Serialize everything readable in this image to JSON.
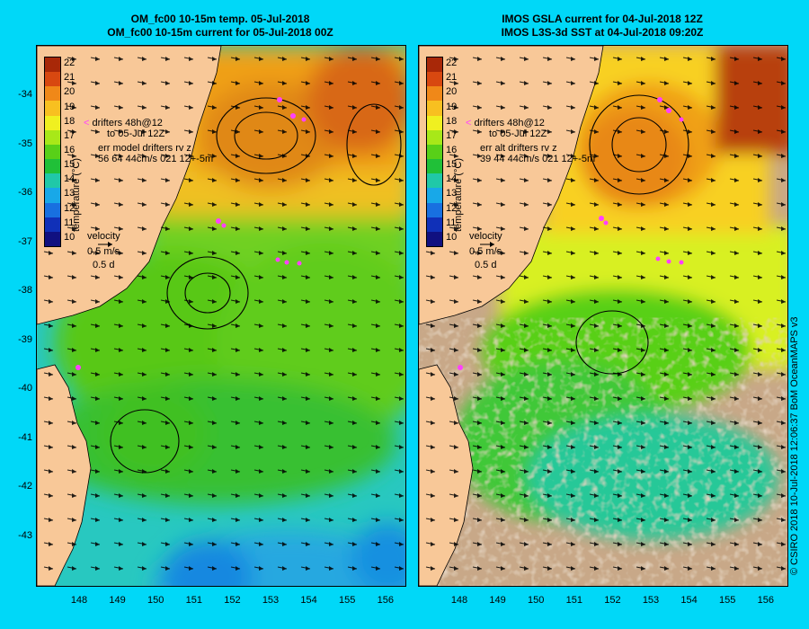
{
  "left_panel": {
    "title_line1": "OM_fc00 10-15m temp. 05-Jul-2018",
    "title_line2": "OM_fc00 10-15m current for 05-Jul-2018 00Z",
    "drifters_label": "drifters 48h@12",
    "drifters_date": "to 05-Jul 12Z",
    "err_label": "err model drifters rv z",
    "err_values": "56 64 44cm/s 021 12+-5m"
  },
  "right_panel": {
    "title_line1": "IMOS GSLA current for 04-Jul-2018 12Z",
    "title_line2": "IMOS L3S-3d SST at 04-Jul-2018 09:20Z",
    "drifters_label": "drifters 48h@12",
    "drifters_date": "to 05-Jul 12Z",
    "err_label": "err alt drifters rv z",
    "err_values": "39 44 44cm/s 021 12+-5m"
  },
  "colorbar": {
    "title": "temperature (°C)",
    "ticks": [
      "22",
      "21",
      "20",
      "19",
      "18",
      "17",
      "16",
      "15",
      "14",
      "13",
      "12",
      "11",
      "10"
    ],
    "colors": [
      "#a82808",
      "#d84810",
      "#f08818",
      "#f8c020",
      "#f0f020",
      "#a8e818",
      "#58d018",
      "#20c038",
      "#20c8a8",
      "#18a8e8",
      "#1870e0",
      "#1030b8",
      "#101080"
    ]
  },
  "velocity_key": {
    "label": "velocity",
    "speed": "0.5 m/s",
    "duration": "0.5 d"
  },
  "y_ticks": [
    "-34",
    "-35",
    "-36",
    "-37",
    "-38",
    "-39",
    "-40",
    "-41",
    "-42",
    "-43"
  ],
  "x_ticks": [
    "148",
    "149",
    "150",
    "151",
    "152",
    "153",
    "154",
    "155",
    "156"
  ],
  "credit": "© CSIRO 2018  10-Jul-2018 12:06:37 BoM OceanMAPS v3",
  "colors": {
    "background": "#00d8f8",
    "land": "#f8c898",
    "no_data": "#c8a888",
    "drifter": "#ff40ff"
  }
}
